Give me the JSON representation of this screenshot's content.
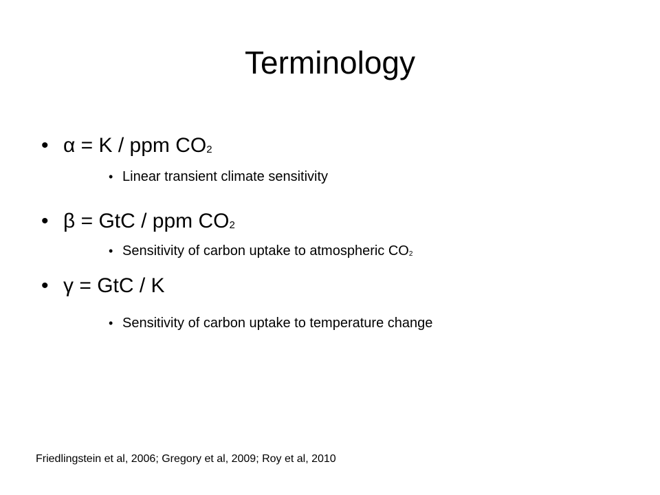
{
  "title": "Terminology",
  "bullets": [
    {
      "text": "α = K / ppm CO",
      "sub": "2",
      "detail": {
        "text": "Linear transient climate sensitivity"
      }
    },
    {
      "text": "β = GtC / ppm CO",
      "sub": "2",
      "detail": {
        "text": "Sensitivity of carbon uptake to atmospheric CO",
        "sub": "2"
      }
    },
    {
      "text": "γ = GtC / K",
      "detail": {
        "text": "Sensitivity of carbon uptake to temperature change"
      }
    }
  ],
  "footnote": "Friedlingstein et al, 2006; Gregory et al, 2009; Roy et al, 2010"
}
